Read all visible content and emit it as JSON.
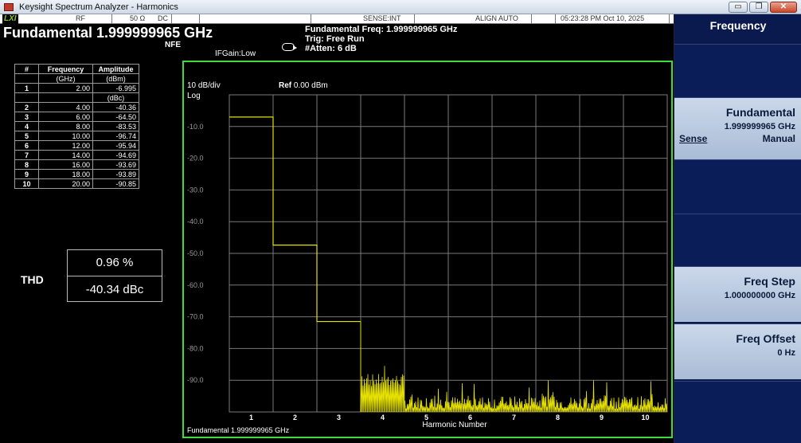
{
  "window": {
    "title": "Keysight Spectrum Analyzer - Harmonics",
    "min": "▭",
    "max": "❐",
    "close": "✕"
  },
  "status": {
    "lxi": "LXI",
    "rf": "RF",
    "impedance": "50 Ω",
    "coupling": "DC",
    "sense": "SENSE:INT",
    "align": "ALIGN AUTO",
    "datetime": "05:23:28 PM Oct 10, 2025"
  },
  "header": {
    "fundamental": "Fundamental 1.999999965 GHz",
    "nfe": "NFE",
    "ifgain": "IFGain:Low",
    "fund_freq": "Fundamental Freq: 1.999999965 GHz",
    "trig": "Trig: Free Run",
    "atten": "#Atten: 6 dB"
  },
  "table": {
    "headers": [
      "#",
      "Frequency",
      "Amplitude"
    ],
    "units": [
      "(GHz)",
      "(dBm)"
    ],
    "dbc_unit": "(dBc)",
    "rows": [
      {
        "n": "1",
        "freq": "2.00",
        "amp": "-6.995"
      },
      {
        "n": "2",
        "freq": "4.00",
        "amp": "-40.36"
      },
      {
        "n": "3",
        "freq": "6.00",
        "amp": "-64.50"
      },
      {
        "n": "4",
        "freq": "8.00",
        "amp": "-83.53"
      },
      {
        "n": "5",
        "freq": "10.00",
        "amp": "-96.74"
      },
      {
        "n": "6",
        "freq": "12.00",
        "amp": "-95.94"
      },
      {
        "n": "7",
        "freq": "14.00",
        "amp": "-94.69"
      },
      {
        "n": "8",
        "freq": "16.00",
        "amp": "-93.69"
      },
      {
        "n": "9",
        "freq": "18.00",
        "amp": "-93.89"
      },
      {
        "n": "10",
        "freq": "20.00",
        "amp": "-90.85"
      }
    ]
  },
  "thd": {
    "label": "THD",
    "percent": "0.96 %",
    "dbc": "-40.34 dBc"
  },
  "softkeys": {
    "menu_title": "Frequency",
    "fundamental": {
      "label": "Fundamental",
      "value": "1.999999965 GHz",
      "sense": "Sense",
      "manual": "Manual"
    },
    "freq_step": {
      "label": "Freq Step",
      "value": "1.000000000 GHz"
    },
    "freq_offset": {
      "label": "Freq Offset",
      "value": "0 Hz"
    }
  },
  "colors": {
    "trace": "#e5e000",
    "grid": "#7a7a7a",
    "frame": "#3ddc3d",
    "softkey_bg": "#0b1d58",
    "softkey_selected": "#b9cae0"
  },
  "chart_data": {
    "type": "line",
    "scale_label": "10 dB/div",
    "scale_type": "Log",
    "ref_label": "Ref",
    "ref_value": "0.00 dBm",
    "y_range": [
      -100,
      0
    ],
    "y_ticks": [
      {
        "value": -10,
        "label": "-10.0"
      },
      {
        "value": -20,
        "label": "-20.0"
      },
      {
        "value": -30,
        "label": "-30.0"
      },
      {
        "value": -40,
        "label": "-40.0"
      },
      {
        "value": -50,
        "label": "-50.0"
      },
      {
        "value": -60,
        "label": "-60.0"
      },
      {
        "value": -70,
        "label": "-70.0"
      },
      {
        "value": -80,
        "label": "-80.0"
      },
      {
        "value": -90,
        "label": "-90.0"
      }
    ],
    "x_range": [
      0,
      10
    ],
    "x_ticks": [
      "1",
      "2",
      "3",
      "4",
      "5",
      "6",
      "7",
      "8",
      "9",
      "10"
    ],
    "xlabel": "Harmonic Number",
    "footer": "Fundamental  1.999999965 GHz",
    "harmonic_levels": [
      {
        "harmonic": 1,
        "level": -7.0
      },
      {
        "harmonic": 2,
        "level": -47.4
      },
      {
        "harmonic": 3,
        "level": -71.5
      }
    ],
    "noise_floor": {
      "harmonic_4": -90,
      "harmonic_5_to_10": -97
    }
  }
}
